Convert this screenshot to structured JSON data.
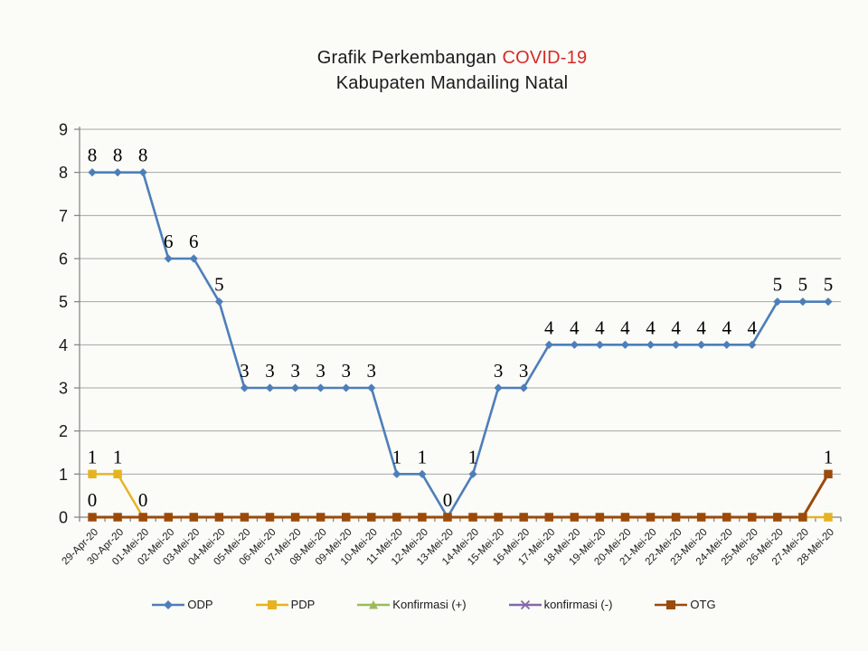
{
  "title": {
    "line1_black": "Grafik Perkembangan",
    "line1_red": "COVID-19",
    "line2": "Kabupaten Mandailing Natal"
  },
  "colors": {
    "title_text": "#1a1a1a",
    "title_accent_red": "#d42b28",
    "gridline": "#a6a6a6",
    "axis": "#808080",
    "axis_text": "#1a1a1a",
    "data_label_text": "#000000"
  },
  "chart_data": {
    "type": "line",
    "title": "Grafik Perkembangan COVID-19 Kabupaten Mandailing Natal",
    "xlabel": "",
    "ylabel": "",
    "ylim": [
      0,
      9
    ],
    "y_ticks": [
      0,
      1,
      2,
      3,
      4,
      5,
      6,
      7,
      8,
      9
    ],
    "grid": true,
    "legend_position": "bottom",
    "categories": [
      "29-Apr-20",
      "30-Apr-20",
      "01-Mei-20",
      "02-Mei-20",
      "03-Mei-20",
      "04-Mei-20",
      "05-Mei-20",
      "06-Mei-20",
      "07-Mei-20",
      "08-Mei-20",
      "09-Mei-20",
      "10-Mei-20",
      "11-Mei-20",
      "12-Mei-20",
      "13-Mei-20",
      "14-Mei-20",
      "15-Mei-20",
      "16-Mei-20",
      "17-Mei-20",
      "18-Mei-20",
      "19-Mei-20",
      "20-Mei-20",
      "21-Mei-20",
      "22-Mei-20",
      "23-Mei-20",
      "24-Mei-20",
      "25-Mei-20",
      "26-Mei-20",
      "27-Mei-20",
      "28-Mei-20"
    ],
    "series": [
      {
        "name": "ODP",
        "color": "#4e7eb8",
        "marker": "diamond",
        "line_width": 2.6,
        "values": [
          8,
          8,
          8,
          6,
          6,
          5,
          3,
          3,
          3,
          3,
          3,
          3,
          1,
          1,
          0,
          1,
          3,
          3,
          4,
          4,
          4,
          4,
          4,
          4,
          4,
          4,
          4,
          5,
          5,
          5
        ],
        "point_labels": "all"
      },
      {
        "name": "PDP",
        "color": "#e6b320",
        "marker": "square",
        "line_width": 2.4,
        "values": [
          1,
          1,
          0,
          0,
          0,
          0,
          0,
          0,
          0,
          0,
          0,
          0,
          0,
          0,
          0,
          0,
          0,
          0,
          0,
          0,
          0,
          0,
          0,
          0,
          0,
          0,
          0,
          0,
          0,
          0
        ],
        "point_labels": {
          "0": "1",
          "1": "1",
          "2": "0"
        }
      },
      {
        "name": "Konfirmasi (+)",
        "color": "#9bbb59",
        "marker": "triangle",
        "line_width": 2,
        "values": [
          0,
          0,
          0,
          0,
          0,
          0,
          0,
          0,
          0,
          0,
          0,
          0,
          0,
          0,
          0,
          0,
          0,
          0,
          0,
          0,
          0,
          0,
          0,
          0,
          0,
          0,
          0,
          0,
          0,
          0
        ],
        "point_labels": null
      },
      {
        "name": "konfirmasi (-)",
        "color": "#8568a8",
        "marker": "x",
        "line_width": 2,
        "values": [
          0,
          0,
          0,
          0,
          0,
          0,
          0,
          0,
          0,
          0,
          0,
          0,
          0,
          0,
          0,
          0,
          0,
          0,
          0,
          0,
          0,
          0,
          0,
          0,
          0,
          0,
          0,
          0,
          0,
          0
        ],
        "point_labels": null
      },
      {
        "name": "OTG",
        "color": "#9a4a0b",
        "marker": "square",
        "line_width": 3,
        "values": [
          0,
          0,
          0,
          0,
          0,
          0,
          0,
          0,
          0,
          0,
          0,
          0,
          0,
          0,
          0,
          0,
          0,
          0,
          0,
          0,
          0,
          0,
          0,
          0,
          0,
          0,
          0,
          0,
          0,
          1
        ],
        "point_labels": {
          "0": "0",
          "29": "1"
        }
      }
    ],
    "draw_order": [
      2,
      3,
      1,
      0,
      4
    ]
  }
}
